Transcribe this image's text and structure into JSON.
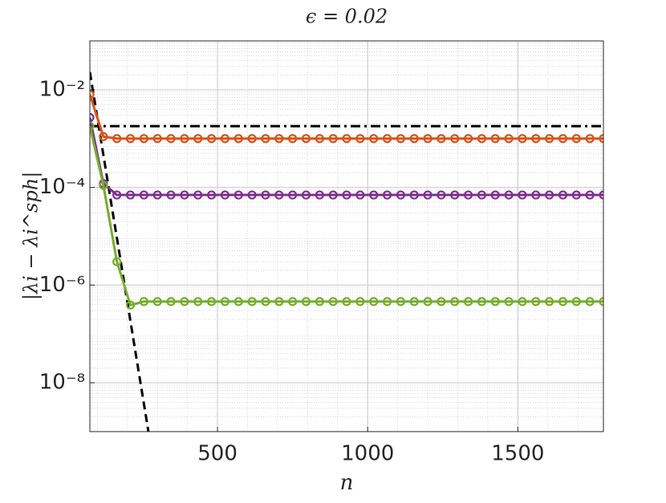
{
  "chart_data": {
    "type": "line",
    "title": "ϵ = 0.02",
    "xlabel": "n",
    "ylabel": "|λi − λi^sph|",
    "xlim": [
      75,
      1785
    ],
    "xticks": [
      500,
      1000,
      1500
    ],
    "ylim": [
      1e-09,
      0.1
    ],
    "yticks": [
      {
        "value": 1e-08,
        "label": "10⁻⁸"
      },
      {
        "value": 1e-06,
        "label": "10⁻⁶"
      },
      {
        "value": 0.0001,
        "label": "10⁻⁴"
      },
      {
        "value": 0.01,
        "label": "10⁻²"
      }
    ],
    "log_y": true,
    "grid": true,
    "series": [
      {
        "color": "#000000",
        "dash": "12 5 3 5",
        "marker": false,
        "x": [
          75,
          1785
        ],
        "values": [
          0.0018,
          0.0018
        ]
      },
      {
        "color": "#000000",
        "dash": "10 6",
        "marker": false,
        "x": [
          75,
          270
        ],
        "values": [
          0.023,
          1e-09
        ]
      },
      {
        "color": "#d95319",
        "marker": true,
        "x": [
          75,
          120,
          165,
          210,
          255,
          300,
          345,
          390,
          435,
          480,
          525,
          570,
          615,
          660,
          705,
          750,
          795,
          840,
          885,
          930,
          975,
          1020,
          1065,
          1110,
          1155,
          1200,
          1245,
          1290,
          1335,
          1380,
          1425,
          1470,
          1515,
          1560,
          1605,
          1650,
          1695,
          1740,
          1785
        ],
        "values": [
          0.008,
          0.0011,
          0.001,
          0.001,
          0.001,
          0.001,
          0.001,
          0.001,
          0.001,
          0.001,
          0.001,
          0.001,
          0.001,
          0.001,
          0.001,
          0.001,
          0.001,
          0.001,
          0.001,
          0.001,
          0.001,
          0.001,
          0.001,
          0.001,
          0.001,
          0.001,
          0.001,
          0.001,
          0.001,
          0.001,
          0.001,
          0.001,
          0.001,
          0.001,
          0.001,
          0.001,
          0.001,
          0.001,
          0.001
        ]
      },
      {
        "color": "#7e2f8e",
        "marker": true,
        "x": [
          75,
          120,
          165,
          210,
          255,
          300,
          345,
          390,
          435,
          480,
          525,
          570,
          615,
          660,
          705,
          750,
          795,
          840,
          885,
          930,
          975,
          1020,
          1065,
          1110,
          1155,
          1200,
          1245,
          1290,
          1335,
          1380,
          1425,
          1470,
          1515,
          1560,
          1605,
          1650,
          1695,
          1740,
          1785
        ],
        "values": [
          0.0027,
          0.00012,
          7e-05,
          7e-05,
          7e-05,
          7e-05,
          7e-05,
          7e-05,
          7e-05,
          7e-05,
          7e-05,
          7e-05,
          7e-05,
          7e-05,
          7e-05,
          7e-05,
          7e-05,
          7e-05,
          7e-05,
          7e-05,
          7e-05,
          7e-05,
          7e-05,
          7e-05,
          7e-05,
          7e-05,
          7e-05,
          7e-05,
          7e-05,
          7e-05,
          7e-05,
          7e-05,
          7e-05,
          7e-05,
          7e-05,
          7e-05,
          7e-05,
          7e-05,
          7e-05
        ]
      },
      {
        "color": "#77ac30",
        "marker": true,
        "x": [
          75,
          120,
          165,
          210,
          255,
          300,
          345,
          390,
          435,
          480,
          525,
          570,
          615,
          660,
          705,
          750,
          795,
          840,
          885,
          930,
          975,
          1020,
          1065,
          1110,
          1155,
          1200,
          1245,
          1290,
          1335,
          1380,
          1425,
          1470,
          1515,
          1560,
          1605,
          1650,
          1695,
          1740,
          1785
        ],
        "values": [
          0.0018,
          0.00011,
          3e-06,
          3.9e-07,
          4.6e-07,
          4.6e-07,
          4.6e-07,
          4.6e-07,
          4.6e-07,
          4.6e-07,
          4.6e-07,
          4.6e-07,
          4.6e-07,
          4.6e-07,
          4.6e-07,
          4.6e-07,
          4.6e-07,
          4.6e-07,
          4.6e-07,
          4.6e-07,
          4.6e-07,
          4.6e-07,
          4.6e-07,
          4.6e-07,
          4.6e-07,
          4.6e-07,
          4.6e-07,
          4.6e-07,
          4.6e-07,
          4.6e-07,
          4.6e-07,
          4.6e-07,
          4.6e-07,
          4.6e-07,
          4.6e-07,
          4.6e-07,
          4.6e-07,
          4.6e-07,
          4.6e-07
        ]
      }
    ]
  }
}
